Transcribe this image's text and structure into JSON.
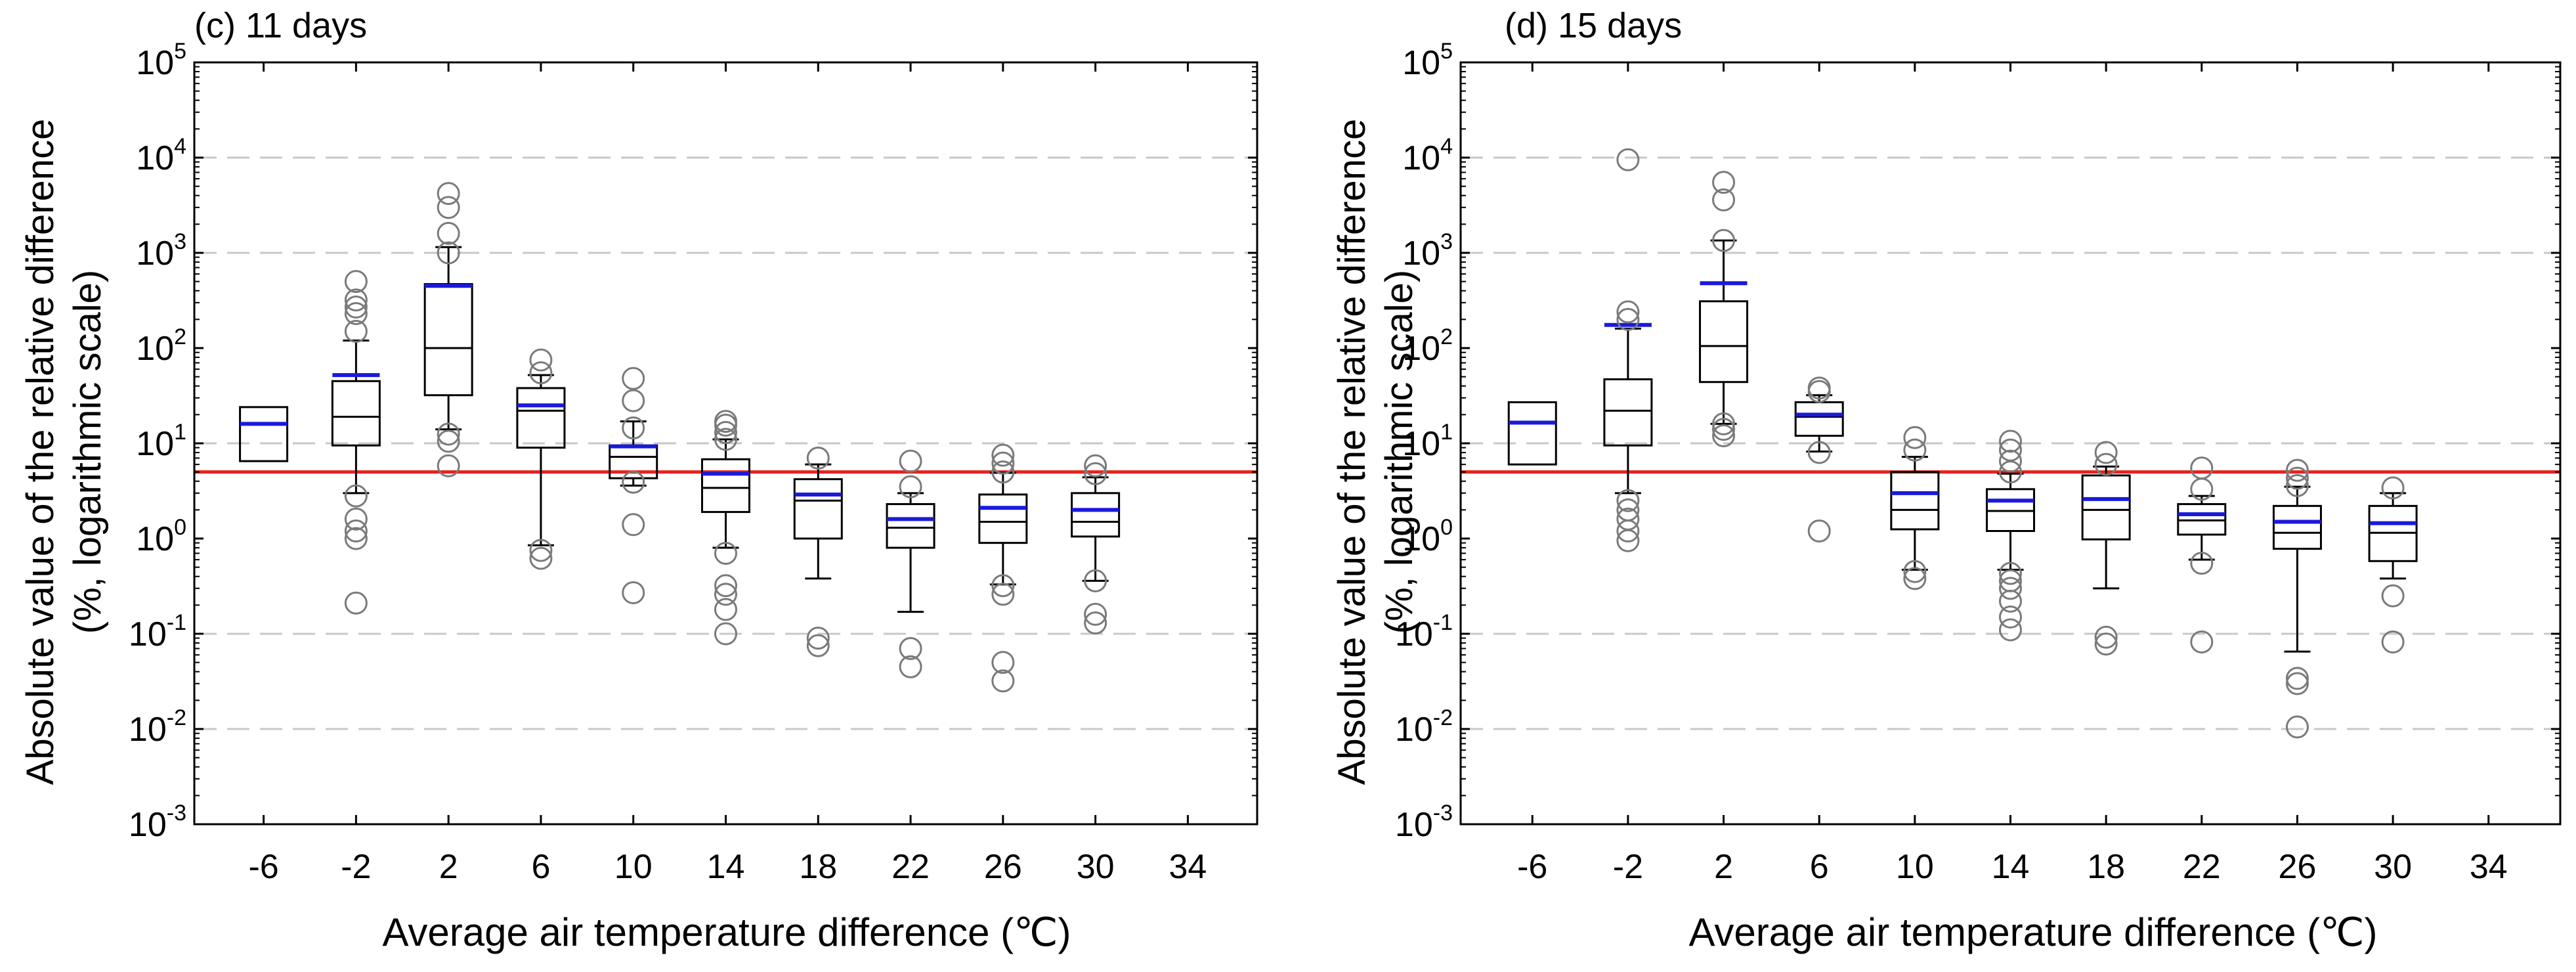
{
  "colors": {
    "box": "#000000",
    "mean": "#1a1adb",
    "reference": "#e8231b",
    "outlier": "#7a7a7a",
    "grid": "#c8c8c8"
  },
  "chart_data": [
    {
      "type": "box",
      "title": "(c) 11 days",
      "xlabel": "Average air temperature difference (℃)",
      "ylabel_line1": "Absolute value of the relative difference",
      "ylabel_line2": "(%, logarithmic scale)",
      "yscale": "log",
      "ylim": [
        0.001,
        100000
      ],
      "yticks": [
        {
          "value": 0.001,
          "base": "10",
          "exp": "-3"
        },
        {
          "value": 0.01,
          "base": "10",
          "exp": "-2"
        },
        {
          "value": 0.1,
          "base": "10",
          "exp": "-1"
        },
        {
          "value": 1,
          "base": "10",
          "exp": "0"
        },
        {
          "value": 10,
          "base": "10",
          "exp": "1"
        },
        {
          "value": 100,
          "base": "10",
          "exp": "2"
        },
        {
          "value": 1000,
          "base": "10",
          "exp": "3"
        },
        {
          "value": 10000,
          "base": "10",
          "exp": "4"
        },
        {
          "value": 100000,
          "base": "10",
          "exp": "5"
        }
      ],
      "xlim": [
        -9,
        37
      ],
      "xticks": [
        "-6",
        "-2",
        "2",
        "6",
        "10",
        "14",
        "18",
        "22",
        "26",
        "30",
        "34"
      ],
      "reference_line": 5,
      "gridlines": [
        0.01,
        0.1,
        10,
        1000,
        10000
      ],
      "boxes": [
        {
          "x": -6,
          "q1": 6.5,
          "median": 16,
          "q3": 24,
          "mean": 16,
          "wlo": null,
          "whi": null,
          "outliers": []
        },
        {
          "x": -2,
          "q1": 9.5,
          "median": 19,
          "q3": 45,
          "mean": 52,
          "wlo": 3.0,
          "whi": 120,
          "outliers": [
            0.21,
            1.0,
            1.2,
            1.6,
            2.8,
            150,
            230,
            270,
            320,
            500
          ]
        },
        {
          "x": 2,
          "q1": 32,
          "median": 100,
          "q3": 470,
          "mean": 450,
          "wlo": 14,
          "whi": 1150,
          "outliers": [
            5.8,
            10.5,
            12.5,
            1000,
            1600,
            3000,
            4200
          ]
        },
        {
          "x": 6,
          "q1": 9,
          "median": 22,
          "q3": 38,
          "mean": 25,
          "wlo": 0.85,
          "whi": 52,
          "outliers": [
            0.62,
            0.75,
            55,
            75
          ]
        },
        {
          "x": 10,
          "q1": 4.3,
          "median": 7.2,
          "q3": 9.5,
          "mean": 9.3,
          "wlo": 3.6,
          "whi": 17,
          "outliers": [
            0.27,
            1.4,
            3.9,
            14.5,
            28,
            48
          ]
        },
        {
          "x": 14,
          "q1": 1.9,
          "median": 3.4,
          "q3": 6.8,
          "mean": 4.8,
          "wlo": 0.8,
          "whi": 11,
          "outliers": [
            0.1,
            0.18,
            0.26,
            0.32,
            0.7,
            11,
            13,
            15.5,
            17
          ]
        },
        {
          "x": 18,
          "q1": 1.0,
          "median": 2.5,
          "q3": 4.2,
          "mean": 2.9,
          "wlo": 0.38,
          "whi": 6.0,
          "outliers": [
            0.075,
            0.09,
            7.0
          ]
        },
        {
          "x": 22,
          "q1": 0.8,
          "median": 1.3,
          "q3": 2.3,
          "mean": 1.6,
          "wlo": 0.17,
          "whi": 3.0,
          "outliers": [
            0.045,
            0.07,
            3.5,
            6.5
          ]
        },
        {
          "x": 26,
          "q1": 0.9,
          "median": 1.5,
          "q3": 2.9,
          "mean": 2.1,
          "wlo": 0.33,
          "whi": 4.9,
          "outliers": [
            0.032,
            0.05,
            0.26,
            0.32,
            5.0,
            6.2,
            7.5
          ]
        },
        {
          "x": 30,
          "q1": 1.05,
          "median": 1.5,
          "q3": 3.0,
          "mean": 2.0,
          "wlo": 0.36,
          "whi": 4.4,
          "outliers": [
            0.13,
            0.16,
            0.36,
            4.8,
            5.8
          ]
        }
      ]
    },
    {
      "type": "box",
      "title": "(d) 15 days",
      "xlabel": "Average air temperature difference (℃)",
      "ylabel_line1": "Absolute value of the relative difference",
      "ylabel_line2": "(%, logarithmic scale)",
      "yscale": "log",
      "ylim": [
        0.001,
        100000
      ],
      "yticks": [
        {
          "value": 0.001,
          "base": "10",
          "exp": "-3"
        },
        {
          "value": 0.01,
          "base": "10",
          "exp": "-2"
        },
        {
          "value": 0.1,
          "base": "10",
          "exp": "-1"
        },
        {
          "value": 1,
          "base": "10",
          "exp": "0"
        },
        {
          "value": 10,
          "base": "10",
          "exp": "1"
        },
        {
          "value": 100,
          "base": "10",
          "exp": "2"
        },
        {
          "value": 1000,
          "base": "10",
          "exp": "3"
        },
        {
          "value": 10000,
          "base": "10",
          "exp": "4"
        },
        {
          "value": 100000,
          "base": "10",
          "exp": "5"
        }
      ],
      "xlim": [
        -9,
        37
      ],
      "xticks": [
        "-6",
        "-2",
        "2",
        "6",
        "10",
        "14",
        "18",
        "22",
        "26",
        "30",
        "34"
      ],
      "reference_line": 5,
      "gridlines": [
        0.01,
        0.1,
        10,
        1000,
        10000
      ],
      "boxes": [
        {
          "x": -6,
          "q1": 6.0,
          "median": 16.5,
          "q3": 27,
          "mean": 16.5,
          "wlo": null,
          "whi": null,
          "outliers": []
        },
        {
          "x": -2,
          "q1": 9.5,
          "median": 22,
          "q3": 47,
          "mean": 175,
          "wlo": 3.0,
          "whi": 160,
          "outliers": [
            0.95,
            1.2,
            1.6,
            2.0,
            2.5,
            200,
            240,
            9500
          ]
        },
        {
          "x": 2,
          "q1": 44,
          "median": 105,
          "q3": 310,
          "mean": 480,
          "wlo": 16,
          "whi": 1350,
          "outliers": [
            12,
            14,
            16,
            1350,
            3600,
            5500
          ]
        },
        {
          "x": 6,
          "q1": 12,
          "median": 19,
          "q3": 27,
          "mean": 20,
          "wlo": 8.2,
          "whi": 32,
          "outliers": [
            1.2,
            8.0,
            35,
            38
          ]
        },
        {
          "x": 10,
          "q1": 1.25,
          "median": 2.0,
          "q3": 5.0,
          "mean": 3.0,
          "wlo": 0.47,
          "whi": 7.2,
          "outliers": [
            0.38,
            0.45,
            8.5,
            11.5
          ]
        },
        {
          "x": 14,
          "q1": 1.2,
          "median": 1.95,
          "q3": 3.3,
          "mean": 2.5,
          "wlo": 0.47,
          "whi": 4.8,
          "outliers": [
            0.11,
            0.15,
            0.22,
            0.3,
            0.36,
            0.43,
            5.0,
            6.5,
            8.5,
            10.5
          ]
        },
        {
          "x": 18,
          "q1": 0.98,
          "median": 2.0,
          "q3": 4.6,
          "mean": 2.6,
          "wlo": 0.3,
          "whi": 5.7,
          "outliers": [
            0.078,
            0.092,
            6.0,
            8.0
          ]
        },
        {
          "x": 22,
          "q1": 1.1,
          "median": 1.55,
          "q3": 2.3,
          "mean": 1.8,
          "wlo": 0.6,
          "whi": 2.8,
          "outliers": [
            0.082,
            0.55,
            3.3,
            5.5
          ]
        },
        {
          "x": 26,
          "q1": 0.78,
          "median": 1.15,
          "q3": 2.2,
          "mean": 1.5,
          "wlo": 0.065,
          "whi": 3.5,
          "outliers": [
            0.0105,
            0.03,
            0.034,
            3.6,
            4.3,
            5.2
          ]
        },
        {
          "x": 30,
          "q1": 0.58,
          "median": 1.15,
          "q3": 2.2,
          "mean": 1.45,
          "wlo": 0.38,
          "whi": 3.0,
          "outliers": [
            0.082,
            0.25,
            3.4
          ]
        }
      ]
    }
  ]
}
